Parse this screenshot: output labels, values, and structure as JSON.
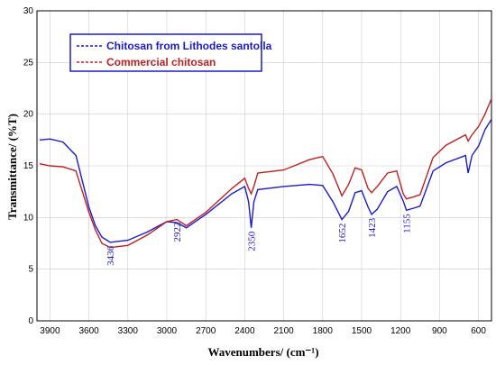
{
  "chart_data": {
    "type": "line",
    "xlabel": "Wavenumbers/ (cm⁻¹)",
    "ylabel": "Transmittance/ (%T)",
    "xlim": [
      4000,
      500
    ],
    "ylim": [
      0,
      30
    ],
    "x_ticks": [
      3900,
      3600,
      3300,
      3000,
      2700,
      2400,
      2100,
      1800,
      1500,
      1200,
      900,
      600
    ],
    "y_ticks": [
      0,
      5,
      10,
      15,
      20,
      25,
      30
    ],
    "series": [
      {
        "name": "Chitosan from Lithodes santolla",
        "color": "#1a1ad0",
        "points": [
          [
            3980,
            17.5
          ],
          [
            3900,
            17.6
          ],
          [
            3800,
            17.3
          ],
          [
            3700,
            16
          ],
          [
            3650,
            13.5
          ],
          [
            3600,
            11
          ],
          [
            3550,
            9.2
          ],
          [
            3500,
            8.1
          ],
          [
            3436,
            7.6
          ],
          [
            3300,
            7.8
          ],
          [
            3150,
            8.6
          ],
          [
            3000,
            9.6
          ],
          [
            2922,
            9.5
          ],
          [
            2850,
            9
          ],
          [
            2700,
            10.3
          ],
          [
            2500,
            12.3
          ],
          [
            2400,
            13
          ],
          [
            2370,
            11.5
          ],
          [
            2350,
            9
          ],
          [
            2330,
            11.5
          ],
          [
            2300,
            12.7
          ],
          [
            2100,
            13
          ],
          [
            1900,
            13.2
          ],
          [
            1800,
            13.1
          ],
          [
            1720,
            11.5
          ],
          [
            1652,
            9.8
          ],
          [
            1600,
            10.6
          ],
          [
            1550,
            12.4
          ],
          [
            1500,
            12.6
          ],
          [
            1450,
            11
          ],
          [
            1423,
            10.3
          ],
          [
            1380,
            10.8
          ],
          [
            1300,
            12.5
          ],
          [
            1230,
            13.0
          ],
          [
            1180,
            11.6
          ],
          [
            1155,
            10.7
          ],
          [
            1100,
            10.9
          ],
          [
            1050,
            11.1
          ],
          [
            950,
            14.5
          ],
          [
            850,
            15.3
          ],
          [
            700,
            16
          ],
          [
            680,
            14.3
          ],
          [
            650,
            16
          ],
          [
            600,
            16.9
          ],
          [
            550,
            18.5
          ],
          [
            500,
            19.5
          ]
        ]
      },
      {
        "name": "Commercial chitosan",
        "color": "#c02020",
        "points": [
          [
            3980,
            15.2
          ],
          [
            3900,
            15
          ],
          [
            3800,
            14.9
          ],
          [
            3700,
            14.5
          ],
          [
            3650,
            12.5
          ],
          [
            3600,
            10.5
          ],
          [
            3550,
            8.8
          ],
          [
            3500,
            7.5
          ],
          [
            3436,
            7.1
          ],
          [
            3300,
            7.3
          ],
          [
            3150,
            8.3
          ],
          [
            3000,
            9.6
          ],
          [
            2922,
            9.8
          ],
          [
            2850,
            9.2
          ],
          [
            2700,
            10.5
          ],
          [
            2500,
            12.8
          ],
          [
            2400,
            13.8
          ],
          [
            2370,
            12.8
          ],
          [
            2350,
            12.3
          ],
          [
            2330,
            13
          ],
          [
            2300,
            14.3
          ],
          [
            2100,
            14.6
          ],
          [
            1900,
            15.6
          ],
          [
            1800,
            15.9
          ],
          [
            1720,
            14.2
          ],
          [
            1652,
            12.1
          ],
          [
            1600,
            13.2
          ],
          [
            1550,
            14.8
          ],
          [
            1500,
            14.6
          ],
          [
            1450,
            12.8
          ],
          [
            1423,
            12.4
          ],
          [
            1380,
            13
          ],
          [
            1300,
            14.3
          ],
          [
            1230,
            14.5
          ],
          [
            1180,
            12.3
          ],
          [
            1155,
            11.8
          ],
          [
            1100,
            12
          ],
          [
            1050,
            12.2
          ],
          [
            950,
            15.8
          ],
          [
            850,
            17
          ],
          [
            700,
            18
          ],
          [
            680,
            17.4
          ],
          [
            650,
            18
          ],
          [
            600,
            18.8
          ],
          [
            550,
            20
          ],
          [
            500,
            21.5
          ]
        ]
      }
    ],
    "annotations": [
      {
        "label": "3436",
        "x": 3436,
        "y": 7.6
      },
      {
        "label": "2922",
        "x": 2922,
        "y": 9.9
      },
      {
        "label": "2350",
        "x": 2350,
        "y": 9
      },
      {
        "label": "1652",
        "x": 1652,
        "y": 9.8
      },
      {
        "label": "1423",
        "x": 1423,
        "y": 10.3
      },
      {
        "label": "1155",
        "x": 1155,
        "y": 10.7
      }
    ],
    "grid": true,
    "legend": "top-left"
  }
}
